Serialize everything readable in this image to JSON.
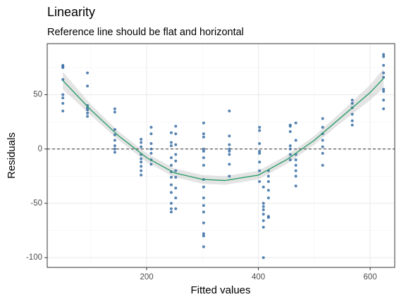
{
  "chart_data": {
    "type": "scatter",
    "title": "Linearity",
    "subtitle": "Reference line should be flat and horizontal",
    "xlabel": "Fitted values",
    "ylabel": "Residuals",
    "color": "#3a6ea5",
    "x": [
      50,
      50,
      50,
      50,
      50,
      50,
      50,
      50,
      94,
      94,
      94,
      94,
      94,
      94,
      94,
      143,
      143,
      143,
      143,
      143,
      143,
      143,
      143,
      190,
      190,
      190,
      190,
      190,
      190,
      190,
      190,
      190,
      208,
      208,
      208,
      208,
      208,
      208,
      208,
      244,
      244,
      244,
      244,
      244,
      244,
      244,
      244,
      244,
      244,
      244,
      244,
      252,
      252,
      252,
      252,
      252,
      252,
      252,
      252,
      252,
      252,
      302,
      302,
      302,
      302,
      302,
      302,
      302,
      302,
      302,
      302,
      302,
      302,
      302,
      302,
      302,
      302,
      348,
      348,
      348,
      348,
      348,
      348,
      348,
      348,
      402,
      402,
      402,
      402,
      402,
      402,
      402,
      402,
      409,
      409,
      409,
      409,
      409,
      409,
      409,
      409,
      418,
      418,
      418,
      418,
      418,
      418,
      418,
      457,
      457,
      457,
      457,
      457,
      457,
      457,
      467,
      467,
      467,
      467,
      467,
      467,
      467,
      467,
      515,
      515,
      515,
      515,
      515,
      515,
      515,
      568,
      568,
      568,
      568,
      568,
      568,
      624,
      624,
      624,
      624,
      624,
      624,
      624,
      624,
      624
    ],
    "y": [
      77,
      76,
      75,
      64,
      50,
      47,
      42,
      35,
      70,
      58,
      40,
      38,
      36,
      33,
      30,
      37,
      34,
      18,
      13,
      8,
      3,
      0,
      -3,
      9,
      6,
      2,
      -5,
      -9,
      -12,
      -16,
      -20,
      -24,
      20,
      14,
      5,
      0,
      -4,
      -10,
      -14,
      15,
      6,
      3,
      -8,
      -15,
      -21,
      -26,
      -33,
      -40,
      -50,
      -55,
      -58,
      21,
      14,
      4,
      -5,
      -11,
      -20,
      -26,
      -36,
      -45,
      -55,
      24,
      14,
      11,
      0,
      -2,
      -8,
      -15,
      -28,
      -35,
      -45,
      -52,
      -58,
      -68,
      -78,
      -80,
      -90,
      35,
      12,
      4,
      0,
      -2,
      -5,
      -14,
      -25,
      20,
      17,
      5,
      -2,
      -4,
      -12,
      -20,
      -30,
      -35,
      -50,
      -53,
      -56,
      -60,
      -66,
      -72,
      -100,
      -20,
      -25,
      -30,
      -38,
      -45,
      -62,
      -63,
      22,
      21,
      16,
      3,
      0,
      -5,
      -10,
      24,
      8,
      -5,
      -10,
      -15,
      -20,
      -25,
      -34,
      28,
      20,
      14,
      8,
      2,
      -4,
      -15,
      45,
      42,
      38,
      32,
      26,
      22,
      87,
      85,
      77,
      70,
      66,
      55,
      53,
      45,
      37
    ],
    "smooth": {
      "color": "#2e9e6b",
      "band_color": "#b3b3b3",
      "x": [
        50,
        100,
        150,
        200,
        250,
        300,
        340,
        400,
        450,
        500,
        550,
        600,
        624
      ],
      "y": [
        63,
        36,
        12,
        -8,
        -22,
        -28,
        -29,
        -24,
        -10,
        8,
        30,
        52,
        65
      ],
      "lower": [
        55,
        31,
        8,
        -12,
        -26,
        -32,
        -33,
        -28,
        -14,
        4,
        25,
        45,
        56
      ],
      "upper": [
        71,
        41,
        16,
        -4,
        -18,
        -24,
        -25,
        -20,
        -6,
        12,
        35,
        59,
        74
      ]
    },
    "hline": 0,
    "xlim": [
      22,
      644
    ],
    "ylim": [
      -109,
      97
    ],
    "xticks": [
      200,
      400,
      600
    ],
    "yticks": [
      -100,
      -50,
      0,
      50
    ],
    "minor_xticks": [
      100,
      300,
      500
    ],
    "minor_yticks": [
      -75,
      -25,
      25,
      75
    ],
    "grid": true
  }
}
